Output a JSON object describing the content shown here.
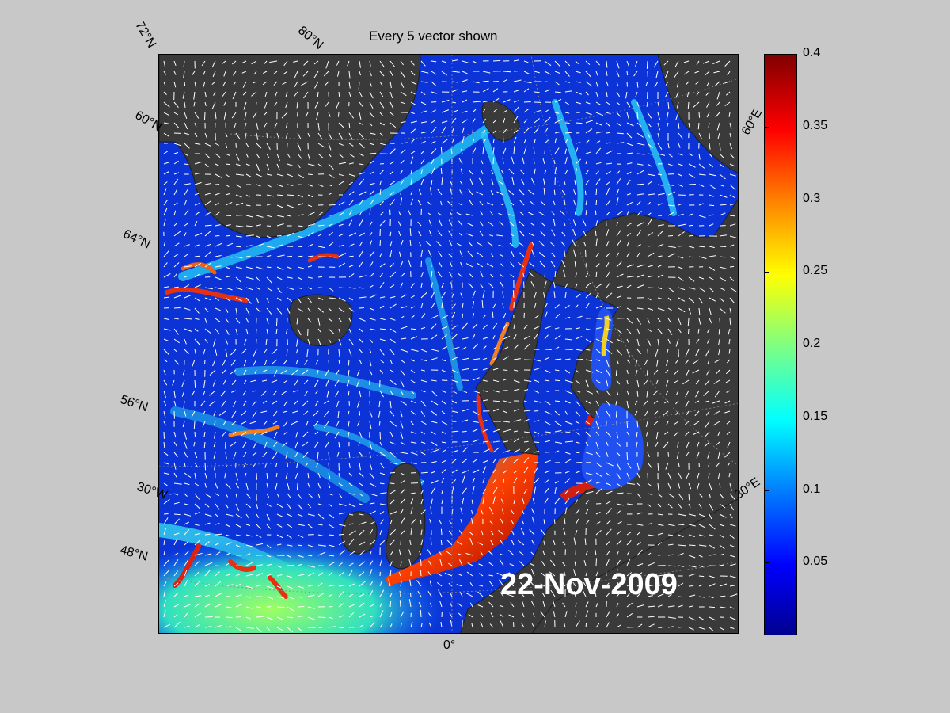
{
  "title": "Every 5 vector shown",
  "date_label": "22-Nov-2009",
  "grid_labels": {
    "lat_72": "72°N",
    "lat_80": "80°N",
    "lat_60": "60°N",
    "lat_64": "64°N",
    "lat_56": "56°N",
    "lat_30w": "30°W",
    "lat_48": "48°N",
    "lon_0": "0°",
    "lon_30e": "30°E",
    "lon_60e": "60°E"
  },
  "colorbar": {
    "ticks": [
      "0.4",
      "0.35",
      "0.3",
      "0.25",
      "0.2",
      "0.15",
      "0.1",
      "0.05"
    ],
    "tick_values": [
      0.4,
      0.35,
      0.3,
      0.25,
      0.2,
      0.15,
      0.1,
      0.05
    ],
    "min": 0,
    "max": 0.4
  },
  "colors": {
    "background": "#c8c8c8",
    "ocean_low": "#0b33d6",
    "land": "#3a3a3a",
    "vector": "#ffffff"
  }
}
